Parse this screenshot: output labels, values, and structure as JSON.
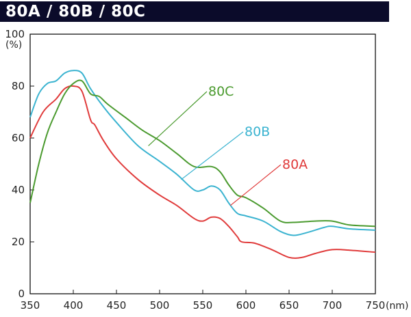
{
  "title": "80A / 80B / 80C",
  "chart_data": {
    "type": "line",
    "title": "80A / 80B / 80C",
    "xlabel": "(nm)",
    "ylabel": "(%)",
    "xlim": [
      350,
      750
    ],
    "ylim": [
      0,
      100
    ],
    "xticks": [
      350,
      400,
      450,
      500,
      550,
      600,
      650,
      700,
      750
    ],
    "yticks": [
      0,
      20,
      40,
      60,
      80,
      100
    ],
    "grid": false,
    "series": [
      {
        "name": "80A",
        "color": "#e03a3a",
        "label_anchor": [
          582,
          34
        ],
        "points": [
          [
            350,
            60
          ],
          [
            365,
            70
          ],
          [
            380,
            75
          ],
          [
            390,
            79
          ],
          [
            400,
            80
          ],
          [
            410,
            78
          ],
          [
            420,
            67
          ],
          [
            425,
            65
          ],
          [
            435,
            59
          ],
          [
            450,
            52
          ],
          [
            475,
            44
          ],
          [
            500,
            38
          ],
          [
            520,
            34
          ],
          [
            540,
            29
          ],
          [
            550,
            28
          ],
          [
            560,
            29.5
          ],
          [
            570,
            29
          ],
          [
            580,
            26
          ],
          [
            590,
            22
          ],
          [
            595,
            20
          ],
          [
            610,
            19.5
          ],
          [
            630,
            17
          ],
          [
            650,
            14
          ],
          [
            665,
            14
          ],
          [
            680,
            15.5
          ],
          [
            700,
            17
          ],
          [
            720,
            16.8
          ],
          [
            750,
            16
          ]
        ]
      },
      {
        "name": "80B",
        "color": "#3ab3d0",
        "label_anchor": [
          525,
          44
        ],
        "points": [
          [
            350,
            68
          ],
          [
            360,
            77
          ],
          [
            370,
            81
          ],
          [
            380,
            82
          ],
          [
            390,
            85
          ],
          [
            400,
            86
          ],
          [
            410,
            85
          ],
          [
            420,
            79
          ],
          [
            435,
            72
          ],
          [
            450,
            66
          ],
          [
            475,
            57
          ],
          [
            500,
            51
          ],
          [
            520,
            46
          ],
          [
            540,
            40
          ],
          [
            550,
            40
          ],
          [
            560,
            41.5
          ],
          [
            570,
            40
          ],
          [
            580,
            35
          ],
          [
            590,
            31
          ],
          [
            600,
            30
          ],
          [
            620,
            28
          ],
          [
            640,
            24
          ],
          [
            655,
            22.5
          ],
          [
            670,
            23.5
          ],
          [
            690,
            25.5
          ],
          [
            700,
            26
          ],
          [
            720,
            25
          ],
          [
            750,
            24.5
          ]
        ]
      },
      {
        "name": "80C",
        "color": "#4a9a2e",
        "label_anchor": [
          487,
          57
        ],
        "points": [
          [
            350,
            35
          ],
          [
            360,
            50
          ],
          [
            370,
            62
          ],
          [
            380,
            70
          ],
          [
            390,
            77
          ],
          [
            400,
            81
          ],
          [
            410,
            82
          ],
          [
            420,
            77
          ],
          [
            430,
            76
          ],
          [
            440,
            73
          ],
          [
            460,
            68
          ],
          [
            480,
            63
          ],
          [
            500,
            59
          ],
          [
            520,
            54
          ],
          [
            540,
            49
          ],
          [
            560,
            49
          ],
          [
            570,
            47
          ],
          [
            580,
            42
          ],
          [
            590,
            38
          ],
          [
            600,
            37
          ],
          [
            620,
            33
          ],
          [
            640,
            28
          ],
          [
            655,
            27.5
          ],
          [
            680,
            28
          ],
          [
            700,
            28
          ],
          [
            720,
            26.5
          ],
          [
            750,
            26
          ]
        ]
      }
    ]
  }
}
